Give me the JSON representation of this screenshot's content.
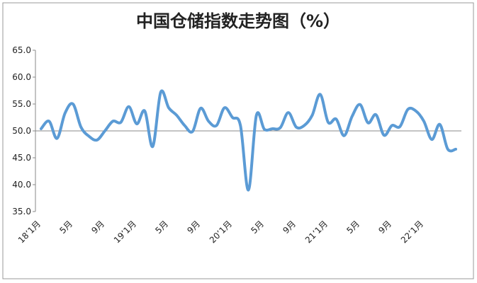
{
  "chart_data": {
    "type": "line",
    "title": "中国仓储指数走势图（%）",
    "categories": [
      "18’1月",
      null,
      null,
      null,
      "5月",
      null,
      null,
      null,
      "9月",
      null,
      null,
      null,
      "19’1月",
      null,
      null,
      null,
      "5月",
      null,
      null,
      null,
      "9月",
      null,
      null,
      null,
      "20’1月",
      null,
      null,
      null,
      "5月",
      null,
      null,
      null,
      "9月",
      null,
      null,
      null,
      "21’1月",
      null,
      null,
      null,
      "5月",
      null,
      null,
      null,
      "9月",
      null,
      null,
      null,
      "22’1月",
      null,
      null,
      null,
      null
    ],
    "series": [
      {
        "color": "#5b9bd5",
        "values": [
          50.4,
          51.8,
          48.6,
          53.3,
          55.0,
          50.7,
          49.0,
          48.3,
          50.0,
          51.8,
          51.6,
          54.5,
          51.3,
          53.7,
          47.1,
          57.2,
          54.3,
          52.9,
          51.0,
          49.9,
          54.2,
          51.8,
          51.0,
          54.3,
          52.5,
          51.0,
          39.0,
          52.9,
          50.3,
          50.4,
          50.6,
          53.4,
          50.7,
          51.0,
          52.9,
          56.8,
          51.6,
          52.2,
          49.1,
          52.7,
          54.9,
          51.5,
          53.0,
          49.2,
          51.0,
          50.8,
          54.0,
          53.7,
          51.8,
          48.4,
          51.2,
          46.6,
          46.6
        ]
      }
    ],
    "ylim": [
      35,
      65
    ],
    "yticks": [
      {
        "value": 35,
        "label": "35.0"
      },
      {
        "value": 40,
        "label": "40.0"
      },
      {
        "value": 45,
        "label": "45.0"
      },
      {
        "value": 50,
        "label": "50.0"
      },
      {
        "value": 55,
        "label": "55.0"
      },
      {
        "value": 60,
        "label": "60.0"
      },
      {
        "value": 65,
        "label": "65.0"
      }
    ],
    "x_axis_crosses": 50
  }
}
